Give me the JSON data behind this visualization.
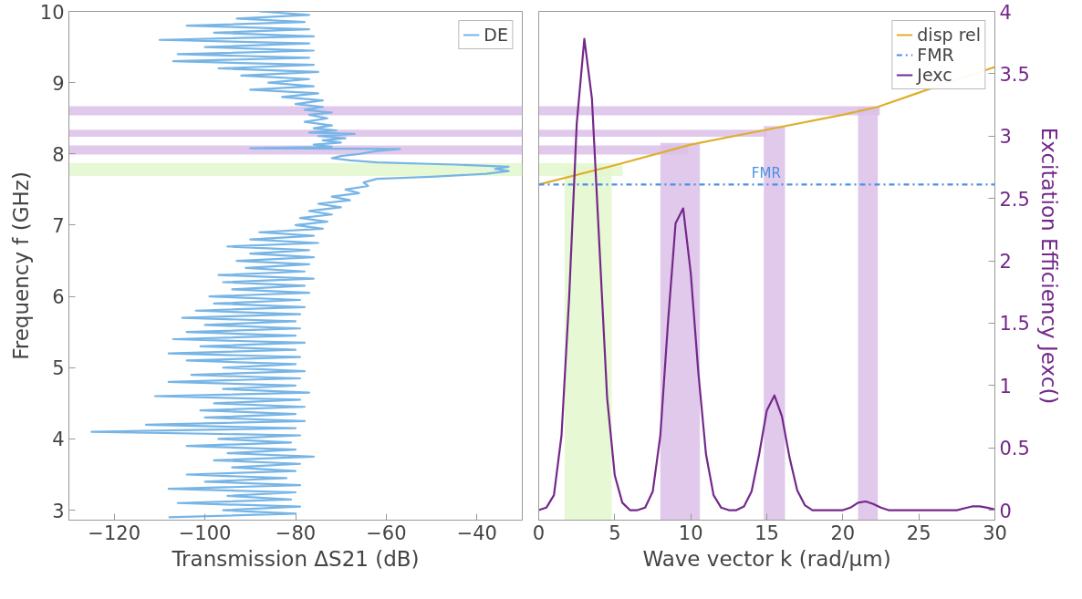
{
  "chart_data": [
    {
      "type": "line",
      "xlabel": "Transmission ΔS21 (dB)",
      "ylabel": "Frequency f (GHz)",
      "xlim": [
        -130,
        -30
      ],
      "xticks": [
        -120,
        -100,
        -80,
        -60,
        -40
      ],
      "ylim": [
        2.86,
        10
      ],
      "yticks": [
        3,
        4,
        5,
        6,
        7,
        8,
        9,
        10
      ],
      "grid": false,
      "legend": "top right",
      "series": [
        {
          "name": "DE",
          "color": "#77b5e6",
          "x": [
            -108,
            -80,
            -96,
            -79,
            -106,
            -81,
            -95,
            -80,
            -108,
            -79,
            -100,
            -82,
            -104,
            -80,
            -94,
            -79,
            -98,
            -76,
            -95,
            -80,
            -104,
            -81,
            -97,
            -79,
            -125,
            -80,
            -113,
            -78,
            -100,
            -80,
            -101,
            -78,
            -98,
            -79,
            -111,
            -77,
            -96,
            -80,
            -108,
            -79,
            -103,
            -78,
            -96,
            -80,
            -104,
            -79,
            -108,
            -80,
            -101,
            -78,
            -107,
            -80,
            -104,
            -79,
            -100,
            -80,
            -105,
            -79,
            -102,
            -78,
            -98,
            -79,
            -99,
            -77,
            -94,
            -78,
            -96,
            -76,
            -97,
            -78,
            -91,
            -77,
            -93,
            -76,
            -90,
            -77,
            -95,
            -75,
            -90,
            -76,
            -88,
            -74,
            -80,
            -73,
            -79,
            -72,
            -77,
            -70,
            -75,
            -68,
            -72,
            -66,
            -69,
            -64,
            -65,
            -62,
            -50,
            -38,
            -33,
            -36,
            -33,
            -45,
            -62,
            -68,
            -72,
            -70,
            -66,
            -62,
            -57,
            -90,
            -72,
            -76,
            -70,
            -74,
            -69,
            -75,
            -67,
            -77,
            -71,
            -76,
            -72,
            -78,
            -73,
            -77,
            -72,
            -78,
            -74,
            -80,
            -74,
            -83,
            -75,
            -90,
            -76,
            -86,
            -77,
            -92,
            -75,
            -97,
            -76,
            -107,
            -77,
            -106,
            -76,
            -100,
            -77,
            -110,
            -76,
            -98,
            -77,
            -104,
            -78,
            -93,
            -77,
            -88
          ],
          "values": [
            2.9,
            2.95,
            3.0,
            3.05,
            3.1,
            3.15,
            3.2,
            3.25,
            3.3,
            3.35,
            3.4,
            3.45,
            3.5,
            3.55,
            3.6,
            3.65,
            3.7,
            3.75,
            3.8,
            3.85,
            3.9,
            3.95,
            4.0,
            4.05,
            4.1,
            4.15,
            4.2,
            4.25,
            4.3,
            4.35,
            4.4,
            4.45,
            4.5,
            4.55,
            4.6,
            4.65,
            4.7,
            4.75,
            4.8,
            4.85,
            4.9,
            4.95,
            5.0,
            5.05,
            5.1,
            5.15,
            5.2,
            5.25,
            5.3,
            5.35,
            5.4,
            5.45,
            5.5,
            5.55,
            5.6,
            5.65,
            5.7,
            5.75,
            5.8,
            5.85,
            5.9,
            5.95,
            6.0,
            6.05,
            6.1,
            6.15,
            6.2,
            6.25,
            6.3,
            6.35,
            6.4,
            6.45,
            6.5,
            6.55,
            6.6,
            6.65,
            6.7,
            6.75,
            6.8,
            6.85,
            6.9,
            6.95,
            7.0,
            7.05,
            7.1,
            7.15,
            7.2,
            7.25,
            7.3,
            7.35,
            7.4,
            7.45,
            7.5,
            7.55,
            7.6,
            7.65,
            7.68,
            7.72,
            7.76,
            7.79,
            7.82,
            7.85,
            7.88,
            7.91,
            7.94,
            7.97,
            8.0,
            8.04,
            8.07,
            8.08,
            8.1,
            8.13,
            8.16,
            8.19,
            8.22,
            8.25,
            8.28,
            8.3,
            8.33,
            8.36,
            8.4,
            8.45,
            8.5,
            8.55,
            8.58,
            8.62,
            8.66,
            8.7,
            8.75,
            8.8,
            8.85,
            8.9,
            8.95,
            9.0,
            9.05,
            9.1,
            9.15,
            9.2,
            9.25,
            9.3,
            9.35,
            9.4,
            9.45,
            9.5,
            9.55,
            9.6,
            9.65,
            9.7,
            9.75,
            9.8,
            9.85,
            9.9,
            9.95,
            10.0
          ]
        }
      ],
      "bands": [
        {
          "axis": "y",
          "from": 8.54,
          "to": 8.67,
          "color": "#dcbfe8"
        },
        {
          "axis": "y",
          "from": 8.24,
          "to": 8.34,
          "color": "#dcbfe8"
        },
        {
          "axis": "y",
          "from": 7.99,
          "to": 8.12,
          "color": "#dcbfe8"
        },
        {
          "axis": "y",
          "from": 7.69,
          "to": 7.87,
          "color": "#e3f7cc"
        }
      ]
    },
    {
      "type": "line",
      "xlabel": "Wave vector k (rad/μm)",
      "y2label": "Excitation Efficiency Jexc()",
      "xlim": [
        0,
        30
      ],
      "xticks": [
        0,
        5,
        10,
        15,
        20,
        25,
        30
      ],
      "ylim": [
        2.86,
        10
      ],
      "y2lim": [
        -0.08,
        4
      ],
      "y2ticks": [
        0,
        0.5,
        1,
        1.5,
        2,
        2.5,
        3,
        3.5,
        4
      ],
      "grid": false,
      "legend": "top right",
      "series": [
        {
          "name": "disp rel",
          "color": "#dfae2c",
          "line_style": "solid",
          "x": [
            0,
            5,
            10,
            15,
            20,
            22.3,
            25,
            30
          ],
          "values": [
            7.57,
            7.84,
            8.13,
            8.34,
            8.55,
            8.66,
            8.86,
            9.22
          ]
        },
        {
          "name": "FMR",
          "color": "#4a90e2",
          "line_style": "dashed",
          "x": [
            0,
            30
          ],
          "values": [
            7.57,
            7.57
          ]
        },
        {
          "name": "Jexc",
          "color": "#74288a",
          "line_style": "solid",
          "axis": "y2",
          "x": [
            0,
            0.5,
            1,
            1.5,
            2,
            2.5,
            3,
            3.5,
            4,
            4.5,
            5,
            5.5,
            6,
            6.5,
            7,
            7.5,
            8,
            8.5,
            9,
            9.5,
            10,
            10.5,
            11,
            11.5,
            12,
            12.5,
            13,
            13.5,
            14,
            14.5,
            15,
            15.5,
            16,
            16.5,
            17,
            17.5,
            18,
            18.5,
            19,
            19.5,
            20,
            20.5,
            21,
            21.5,
            22,
            22.5,
            23,
            23.5,
            24,
            24.5,
            25,
            25.5,
            26,
            26.5,
            27,
            27.5,
            28,
            28.5,
            29,
            29.5,
            30
          ],
          "values": [
            0,
            0.02,
            0.12,
            0.6,
            1.7,
            3.1,
            3.78,
            3.3,
            2.1,
            0.9,
            0.28,
            0.06,
            0,
            0,
            0.02,
            0.15,
            0.6,
            1.5,
            2.3,
            2.42,
            1.9,
            1.1,
            0.45,
            0.12,
            0.02,
            0,
            0,
            0.03,
            0.15,
            0.45,
            0.8,
            0.92,
            0.75,
            0.42,
            0.16,
            0.04,
            0,
            0,
            0,
            0,
            0,
            0.02,
            0.06,
            0.07,
            0.05,
            0.02,
            0,
            0,
            0,
            0,
            0,
            0,
            0,
            0,
            0,
            0,
            0.015,
            0.03,
            0.03,
            0.02,
            0.005
          ]
        }
      ],
      "bands": [
        {
          "axis": "y",
          "from": 8.54,
          "to": 8.67,
          "color": "#dcbfe8"
        },
        {
          "axis": "y",
          "from": 8.24,
          "to": 8.34,
          "color": "#dcbfe8"
        },
        {
          "axis": "y",
          "from": 7.99,
          "to": 8.12,
          "color": "#dcbfe8"
        },
        {
          "axis": "y",
          "from": 7.69,
          "to": 7.87,
          "color": "#e3f7cc"
        },
        {
          "axis": "x",
          "from": 1.7,
          "to": 4.8,
          "color": "#e3f7cc"
        },
        {
          "axis": "x",
          "from": 8.0,
          "to": 10.6,
          "color": "#dcbfe8"
        },
        {
          "axis": "x",
          "from": 14.8,
          "to": 16.2,
          "color": "#dcbfe8"
        },
        {
          "axis": "x",
          "from": 21.0,
          "to": 22.3,
          "color": "#dcbfe8"
        }
      ],
      "annotations": [
        {
          "text": "FMR",
          "x": 14,
          "y": 7.57
        }
      ]
    }
  ]
}
